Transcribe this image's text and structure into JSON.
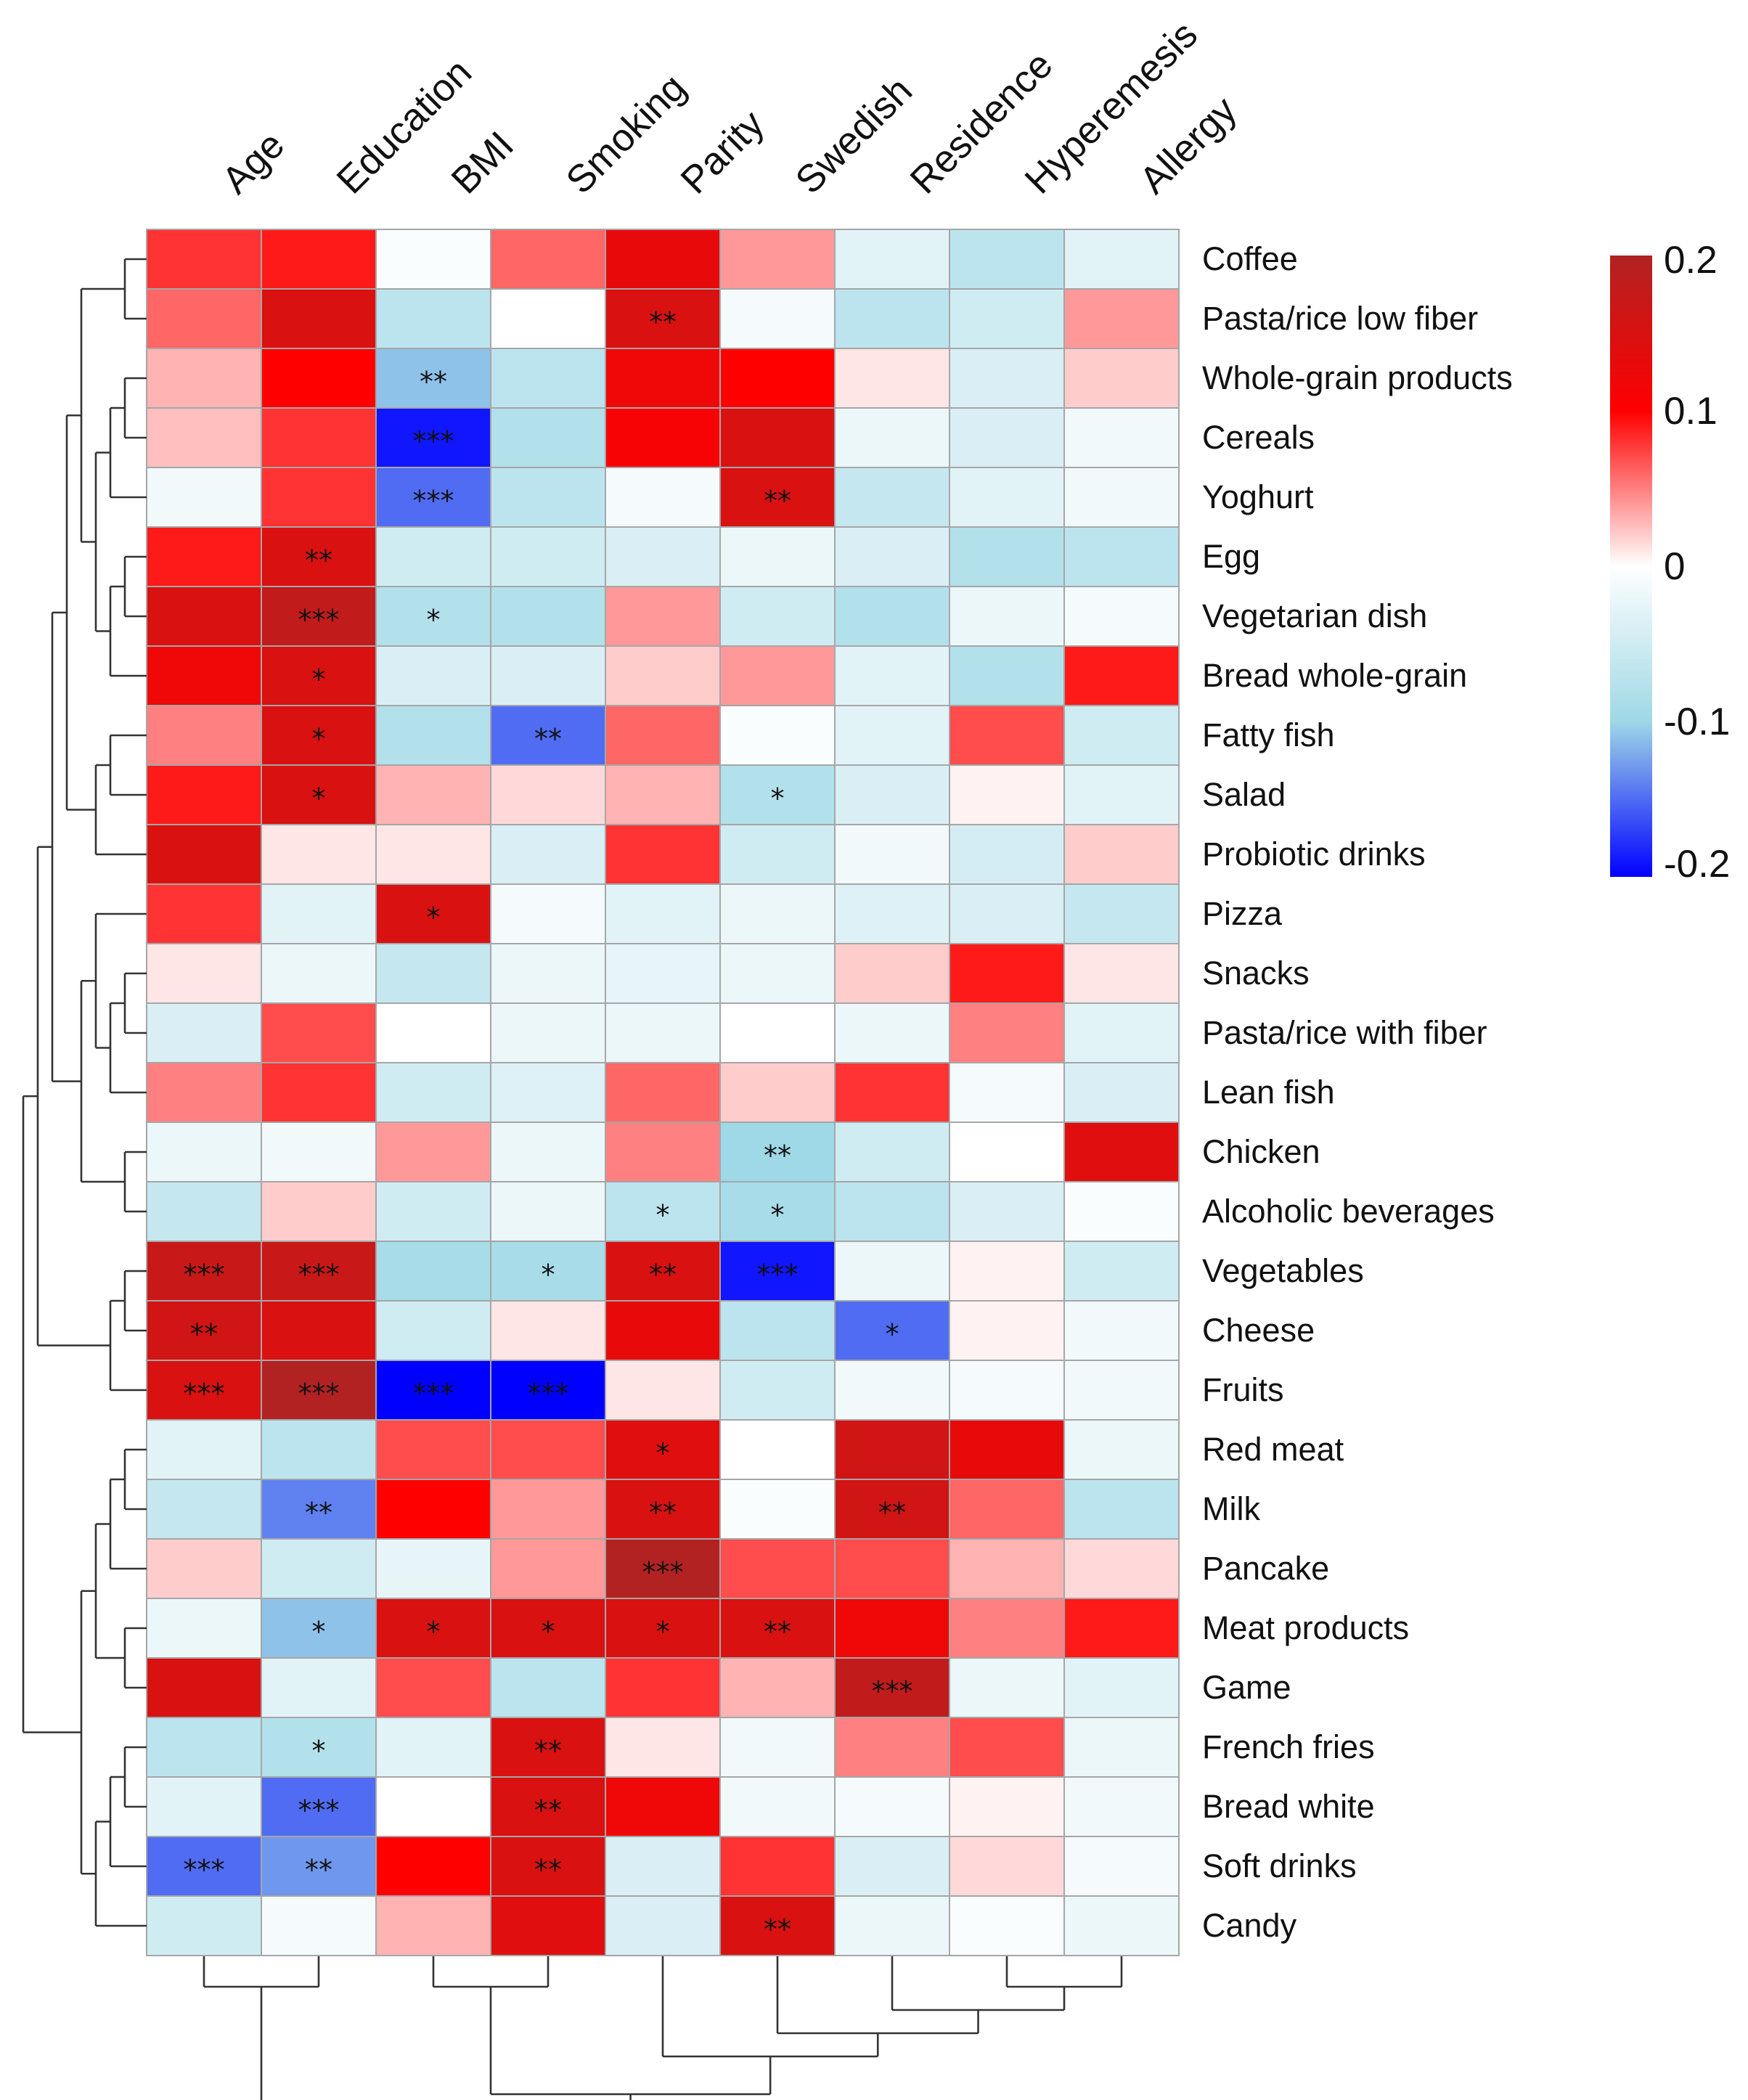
{
  "chart_data": {
    "type": "heatmap",
    "title": "",
    "columns": [
      "Age",
      "Education",
      "BMI",
      "Smoking",
      "Parity",
      "Swedish",
      "Residence",
      "Hyperemesis",
      "Allergy"
    ],
    "rows": [
      "Coffee",
      "Pasta/rice low fiber",
      "Whole-grain products",
      "Cereals",
      "Yoghurt",
      "Egg",
      "Vegetarian dish",
      "Bread whole-grain",
      "Fatty fish",
      "Salad",
      "Probiotic drinks",
      "Pizza",
      "Snacks",
      "Pasta/rice with fiber",
      "Lean fish",
      "Chicken",
      "Alcoholic beverages",
      "Vegetables",
      "Cheese",
      "Fruits",
      "Red meat",
      "Milk",
      "Pancake",
      "Meat products",
      "Game",
      "French fries",
      "Bread white",
      "Soft drinks",
      "Candy"
    ],
    "values": [
      [
        0.08,
        0.09,
        -0.005,
        0.06,
        0.13,
        0.04,
        -0.03,
        -0.07,
        -0.03
      ],
      [
        0.06,
        0.15,
        -0.07,
        0.0,
        0.15,
        -0.01,
        -0.07,
        -0.05,
        0.04
      ],
      [
        0.03,
        0.1,
        -0.11,
        -0.07,
        0.12,
        0.1,
        0.01,
        -0.04,
        0.02
      ],
      [
        0.025,
        0.08,
        -0.19,
        -0.08,
        0.11,
        0.15,
        -0.02,
        -0.04,
        -0.015
      ],
      [
        -0.015,
        0.08,
        -0.15,
        -0.07,
        -0.01,
        0.15,
        -0.06,
        -0.03,
        -0.015
      ],
      [
        0.09,
        0.15,
        -0.05,
        -0.05,
        -0.04,
        -0.02,
        -0.04,
        -0.08,
        -0.07
      ],
      [
        0.15,
        0.18,
        -0.08,
        -0.08,
        0.04,
        -0.05,
        -0.08,
        -0.02,
        -0.01
      ],
      [
        0.12,
        0.15,
        -0.04,
        -0.04,
        0.02,
        0.04,
        -0.03,
        -0.08,
        0.09
      ],
      [
        0.05,
        0.15,
        -0.08,
        -0.15,
        0.06,
        -0.005,
        -0.03,
        0.07,
        -0.05
      ],
      [
        0.09,
        0.15,
        0.03,
        0.015,
        0.03,
        -0.08,
        -0.04,
        0.005,
        -0.03
      ],
      [
        0.15,
        0.01,
        0.01,
        -0.04,
        0.08,
        -0.05,
        -0.015,
        -0.045,
        0.02
      ],
      [
        0.08,
        -0.03,
        0.15,
        -0.01,
        -0.03,
        -0.02,
        -0.035,
        -0.04,
        -0.06
      ],
      [
        0.01,
        -0.02,
        -0.06,
        -0.02,
        -0.025,
        -0.02,
        0.02,
        0.09,
        0.01
      ],
      [
        -0.04,
        0.07,
        0.0,
        -0.02,
        -0.02,
        0.0,
        -0.02,
        0.05,
        -0.03
      ],
      [
        0.05,
        0.08,
        -0.05,
        -0.035,
        0.06,
        0.02,
        0.08,
        -0.01,
        -0.04
      ],
      [
        -0.02,
        -0.015,
        0.04,
        -0.02,
        0.05,
        -0.1,
        -0.05,
        0.0,
        0.14
      ],
      [
        -0.06,
        0.02,
        -0.05,
        -0.02,
        -0.07,
        -0.09,
        -0.07,
        -0.04,
        -0.005
      ],
      [
        0.17,
        0.17,
        -0.09,
        -0.09,
        0.15,
        -0.19,
        -0.02,
        0.005,
        -0.05
      ],
      [
        0.16,
        0.15,
        -0.05,
        0.01,
        0.13,
        -0.07,
        -0.15,
        0.005,
        -0.015
      ],
      [
        0.15,
        0.2,
        -0.21,
        -0.2,
        0.01,
        -0.05,
        -0.015,
        -0.01,
        -0.015
      ],
      [
        -0.03,
        -0.07,
        0.07,
        0.07,
        0.14,
        0.0,
        0.16,
        0.13,
        -0.02
      ],
      [
        -0.06,
        -0.14,
        0.1,
        0.04,
        0.15,
        -0.005,
        0.16,
        0.06,
        -0.07
      ],
      [
        0.02,
        -0.05,
        -0.025,
        0.04,
        0.2,
        0.07,
        0.07,
        0.03,
        0.015
      ],
      [
        -0.02,
        -0.11,
        0.15,
        0.15,
        0.15,
        0.15,
        0.12,
        0.05,
        0.09
      ],
      [
        0.15,
        -0.03,
        0.07,
        -0.07,
        0.08,
        0.03,
        0.18,
        -0.02,
        -0.03
      ],
      [
        -0.07,
        -0.08,
        -0.03,
        0.15,
        0.01,
        -0.015,
        0.05,
        0.07,
        -0.02
      ],
      [
        -0.03,
        -0.15,
        0.0,
        0.15,
        0.12,
        -0.015,
        -0.01,
        0.005,
        -0.015
      ],
      [
        -0.15,
        -0.13,
        0.1,
        0.15,
        -0.04,
        0.08,
        -0.04,
        0.015,
        -0.01
      ],
      [
        -0.05,
        -0.01,
        0.03,
        0.14,
        -0.04,
        0.15,
        -0.02,
        -0.005,
        -0.02
      ]
    ],
    "significance": [
      [
        "",
        "",
        "",
        "",
        "",
        "",
        "",
        "",
        ""
      ],
      [
        "",
        "",
        "",
        "",
        "**",
        "",
        "",
        "",
        ""
      ],
      [
        "",
        "",
        "**",
        "",
        "",
        "",
        "",
        "",
        ""
      ],
      [
        "",
        "",
        "***",
        "",
        "",
        "",
        "",
        "",
        ""
      ],
      [
        "",
        "",
        "***",
        "",
        "",
        "**",
        "",
        "",
        ""
      ],
      [
        "",
        "**",
        "",
        "",
        "",
        "",
        "",
        "",
        ""
      ],
      [
        "",
        "***",
        "*",
        "",
        "",
        "",
        "",
        "",
        ""
      ],
      [
        "",
        "*",
        "",
        "",
        "",
        "",
        "",
        "",
        ""
      ],
      [
        "",
        "*",
        "",
        "**",
        "",
        "",
        "",
        "",
        ""
      ],
      [
        "",
        "*",
        "",
        "",
        "",
        "*",
        "",
        "",
        ""
      ],
      [
        "",
        "",
        "",
        "",
        "",
        "",
        "",
        "",
        ""
      ],
      [
        "",
        "",
        "*",
        "",
        "",
        "",
        "",
        "",
        ""
      ],
      [
        "",
        "",
        "",
        "",
        "",
        "",
        "",
        "",
        ""
      ],
      [
        "",
        "",
        "",
        "",
        "",
        "",
        "",
        "",
        ""
      ],
      [
        "",
        "",
        "",
        "",
        "",
        "",
        "",
        "",
        ""
      ],
      [
        "",
        "",
        "",
        "",
        "",
        "**",
        "",
        "",
        ""
      ],
      [
        "",
        "",
        "",
        "",
        "*",
        "*",
        "",
        "",
        ""
      ],
      [
        "***",
        "***",
        "",
        "*",
        "**",
        "***",
        "",
        "",
        ""
      ],
      [
        "**",
        "",
        "",
        "",
        "",
        "",
        "*",
        "",
        ""
      ],
      [
        "***",
        "***",
        "***",
        "***",
        "",
        "",
        "",
        "",
        ""
      ],
      [
        "",
        "",
        "",
        "",
        "*",
        "",
        "",
        "",
        ""
      ],
      [
        "",
        "**",
        "",
        "",
        "**",
        "",
        "**",
        "",
        ""
      ],
      [
        "",
        "",
        "",
        "",
        "***",
        "",
        "",
        "",
        ""
      ],
      [
        "",
        "*",
        "*",
        "*",
        "*",
        "**",
        "",
        "",
        ""
      ],
      [
        "",
        "",
        "",
        "",
        "",
        "",
        "***",
        "",
        ""
      ],
      [
        "",
        "*",
        "",
        "**",
        "",
        "",
        "",
        "",
        ""
      ],
      [
        "",
        "***",
        "",
        "**",
        "",
        "",
        "",
        "",
        ""
      ],
      [
        "***",
        "**",
        "",
        "**",
        "",
        "",
        "",
        "",
        ""
      ],
      [
        "",
        "",
        "",
        "",
        "",
        "**",
        "",
        "",
        ""
      ]
    ],
    "color_scale": {
      "min": -0.2,
      "max": 0.2,
      "low_color": "#0000ff",
      "mid_color": "#ffffff",
      "high_color": "#ff0000",
      "top_color": "#b22222",
      "ticks": [
        "0.2",
        "0.1",
        "0",
        "-0.1",
        "-0.2"
      ],
      "tick_values": [
        0.2,
        0.1,
        0,
        -0.1,
        -0.2
      ]
    },
    "row_dendrogram": "hierarchical clustering of rows (left)",
    "column_dendrogram": "hierarchical clustering of columns (bottom)"
  }
}
